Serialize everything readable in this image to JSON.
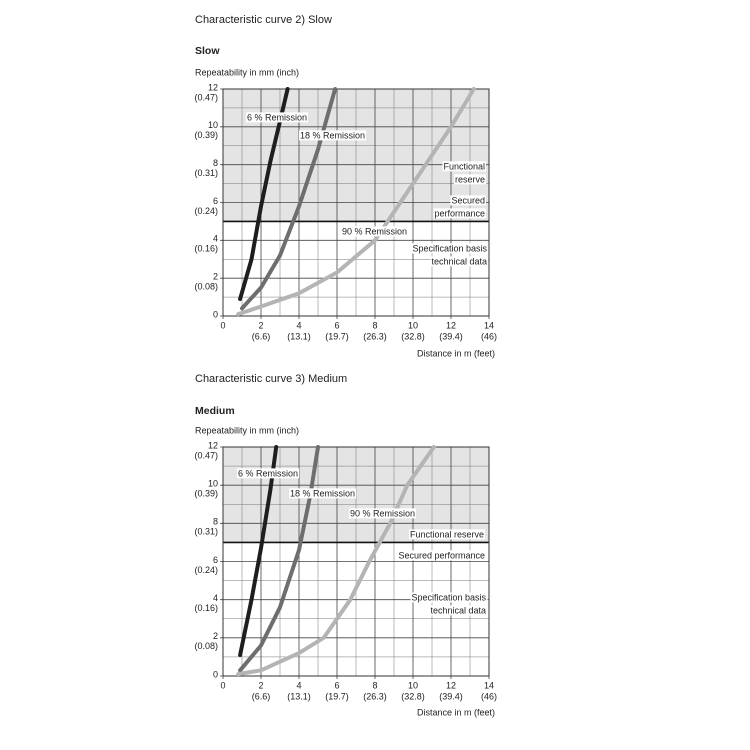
{
  "chart_data": [
    {
      "type": "line",
      "heading": "Characteristic curve 2) Slow",
      "title": "Slow",
      "ylabel": "Repeatability in mm (inch)",
      "xlabel": "Distance in m (feet)",
      "xlim": [
        0,
        14
      ],
      "ylim": [
        0,
        12
      ],
      "xticks": [
        0,
        2,
        4,
        6,
        8,
        10,
        12,
        14
      ],
      "xtick_sublabels": [
        null,
        "(6.6)",
        "(13.1)",
        "(19.7)",
        "(26.3)",
        "(32.8)",
        "(39.4)",
        "(46)"
      ],
      "yticks": [
        0,
        2,
        4,
        6,
        8,
        10,
        12
      ],
      "ytick_sublabels": [
        null,
        "(0.08)",
        "(0.16)",
        "(0.24)",
        "(0.31)",
        "(0.39)",
        "(0.47)"
      ],
      "xminorticks": [
        1,
        3,
        5,
        7,
        9,
        11,
        13
      ],
      "yminorticks": [
        1,
        3,
        5,
        7,
        9,
        11
      ],
      "grid": true,
      "shaded_above": 5,
      "series": [
        {
          "name": "6 % Remission",
          "color": "#1e1e1e",
          "x": [
            0.9,
            1.5,
            2,
            2.5,
            3,
            3.4
          ],
          "values": [
            0.9,
            3,
            5.8,
            8.2,
            10.3,
            12
          ]
        },
        {
          "name": "18 % Remission",
          "color": "#6e6e6e",
          "x": [
            1,
            2,
            3,
            4,
            5,
            5.9
          ],
          "values": [
            0.4,
            1.5,
            3.2,
            5.8,
            8.8,
            12
          ]
        },
        {
          "name": "90 % Remission",
          "color": "#b4b4b4",
          "x": [
            0.8,
            2,
            4,
            6,
            8,
            10,
            12,
            13.2
          ],
          "values": [
            0.1,
            0.5,
            1.2,
            2.3,
            4,
            7,
            10,
            12
          ]
        }
      ],
      "annotations": [
        [
          "Functional",
          "reserve"
        ],
        [
          "Secured",
          "performance"
        ],
        [
          "Specification basis",
          "technical data"
        ]
      ]
    },
    {
      "type": "line",
      "heading": "Characteristic curve 3) Medium",
      "title": "Medium",
      "ylabel": "Repeatability in mm (inch)",
      "xlabel": "Distance in m (feet)",
      "xlim": [
        0,
        14
      ],
      "ylim": [
        0,
        12
      ],
      "xticks": [
        0,
        2,
        4,
        6,
        8,
        10,
        12,
        14
      ],
      "xtick_sublabels": [
        null,
        "(6.6)",
        "(13.1)",
        "(19.7)",
        "(26.3)",
        "(32.8)",
        "(39.4)",
        "(46)"
      ],
      "yticks": [
        0,
        2,
        4,
        6,
        8,
        10,
        12
      ],
      "ytick_sublabels": [
        null,
        "(0.08)",
        "(0.16)",
        "(0.24)",
        "(0.31)",
        "(0.39)",
        "(0.47)"
      ],
      "xminorticks": [
        1,
        3,
        5,
        7,
        9,
        11,
        13
      ],
      "yminorticks": [
        1,
        3,
        5,
        7,
        9,
        11
      ],
      "grid": true,
      "shaded_above": 7,
      "series": [
        {
          "name": "6 % Remission",
          "color": "#1e1e1e",
          "x": [
            0.9,
            1.5,
            2,
            2.5,
            2.8
          ],
          "values": [
            1.1,
            4,
            6.7,
            9.8,
            12
          ]
        },
        {
          "name": "18 % Remission",
          "color": "#6e6e6e",
          "x": [
            0.9,
            2,
            3,
            4,
            4.6,
            5
          ],
          "values": [
            0.3,
            1.6,
            3.6,
            6.6,
            9.5,
            12
          ]
        },
        {
          "name": "90 % Remission",
          "color": "#b4b4b4",
          "x": [
            0.8,
            2,
            4,
            5.3,
            6.7,
            7.7,
            8.8,
            9.7,
            11.1
          ],
          "values": [
            0.1,
            0.3,
            1.2,
            2,
            4,
            6,
            8,
            10,
            12
          ]
        }
      ],
      "annotations": [
        [
          "Functional reserve"
        ],
        [
          "Secured performance"
        ],
        [
          "Specification basis",
          "technical data"
        ]
      ]
    }
  ]
}
